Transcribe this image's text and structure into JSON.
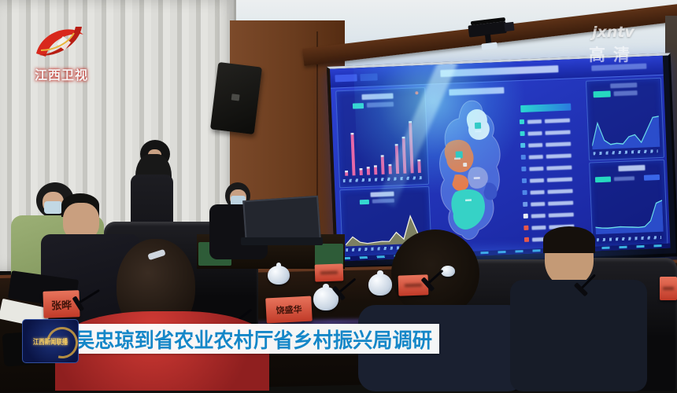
{
  "broadcast": {
    "channel_logo_text": "江西卫视",
    "news_logo_text": "江西新闻联播",
    "watermark_site": "jxntv",
    "watermark_quality": "高清"
  },
  "caption_bar": {
    "text": "吴忠琼到省农业农村厅省乡村振兴局调研",
    "text_color": "#1587c8",
    "bar_color": "#fdfdfd"
  },
  "table": {
    "placard_color": "#cc3b2a",
    "placards": {
      "left": "张晔",
      "center": "饶盛华"
    }
  },
  "dashboard": {
    "bg_color": "#2336bc",
    "panel_border_color": "#6096ff",
    "charts": [
      {
        "name": "left-bar",
        "type": "bar",
        "color": "#e668a8",
        "values": [
          6,
          70,
          9,
          11,
          13,
          30,
          14,
          48,
          60,
          86,
          20
        ]
      },
      {
        "name": "left-area",
        "type": "area",
        "color": "#f0f0e0",
        "fill": "#8f915a",
        "values": [
          4,
          26,
          10,
          6,
          8,
          10,
          9,
          34,
          14,
          78,
          26,
          4
        ]
      },
      {
        "name": "right-area-top",
        "type": "area",
        "color": "#6adce8",
        "fill": "#2f55d6",
        "values": [
          8,
          60,
          20,
          10,
          12,
          10,
          26,
          30,
          12,
          40,
          68,
          70
        ]
      },
      {
        "name": "right-area-bottom",
        "type": "area",
        "color": "#6adce8",
        "fill": "#2f55d6",
        "values": [
          16,
          14,
          13,
          14,
          15,
          14,
          13,
          12,
          13,
          26,
          66,
          72
        ]
      }
    ],
    "legend_rows": [
      "#35d8d4",
      "#35d8d4",
      "#4fc2e8",
      "#4f86e8",
      "#4f86e8",
      "#4f86e8",
      "#4f86e8",
      "#6f9ae8",
      "#e8eef5",
      "#e85848",
      "#e85848"
    ],
    "map": {
      "base": "#4a6ad8",
      "white_region": "#eaf2f8",
      "orange_region": "#e87c4a",
      "lavender_region": "#8a9ce0",
      "cyan_region": "#36d2c6",
      "teal_marker": "#28c8b4",
      "dark_blue_region": "#3a55c8"
    }
  }
}
